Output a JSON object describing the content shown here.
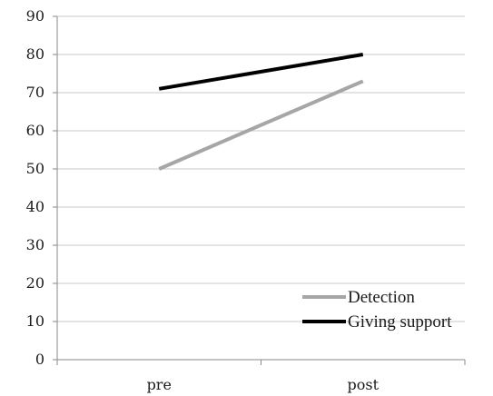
{
  "chart_data": {
    "type": "line",
    "title": "",
    "xlabel": "",
    "ylabel": "",
    "categories": [
      "pre",
      "post"
    ],
    "ylim": [
      0,
      90
    ],
    "yticks": [
      0,
      10,
      20,
      30,
      40,
      50,
      60,
      70,
      80,
      90
    ],
    "grid": true,
    "legend_position": "bottom-right",
    "series": [
      {
        "name": "Detection",
        "values": [
          50,
          73
        ],
        "color": "#a6a6a6"
      },
      {
        "name": "Giving support",
        "values": [
          71,
          80
        ],
        "color": "#000000"
      }
    ]
  }
}
